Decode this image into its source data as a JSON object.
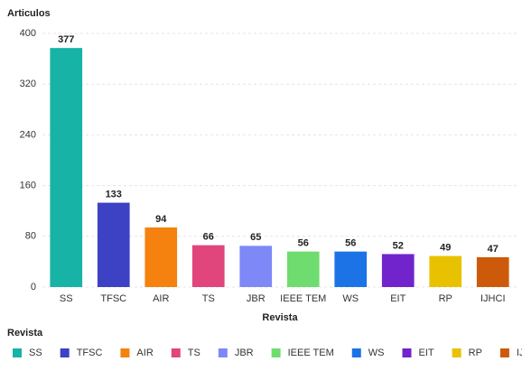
{
  "chart_data": {
    "type": "bar",
    "ylabel": "Articulos",
    "xlabel": "Revista",
    "legend_title": "Revista",
    "categories": [
      "SS",
      "TFSC",
      "AIR",
      "TS",
      "JBR",
      "IEEE TEM",
      "WS",
      "EIT",
      "RP",
      "IJHCI"
    ],
    "values": [
      377,
      133,
      94,
      66,
      65,
      56,
      56,
      52,
      49,
      47
    ],
    "colors": [
      "#17b3a6",
      "#3d41c4",
      "#f5820f",
      "#e0457b",
      "#7f88f7",
      "#6fdc6f",
      "#1b73e6",
      "#7124cc",
      "#e8c200",
      "#cd5a0a"
    ],
    "ylim": [
      0,
      400
    ],
    "yticks": [
      0,
      80,
      160,
      240,
      320,
      400
    ],
    "grid": true,
    "legend": "bottom-left"
  }
}
